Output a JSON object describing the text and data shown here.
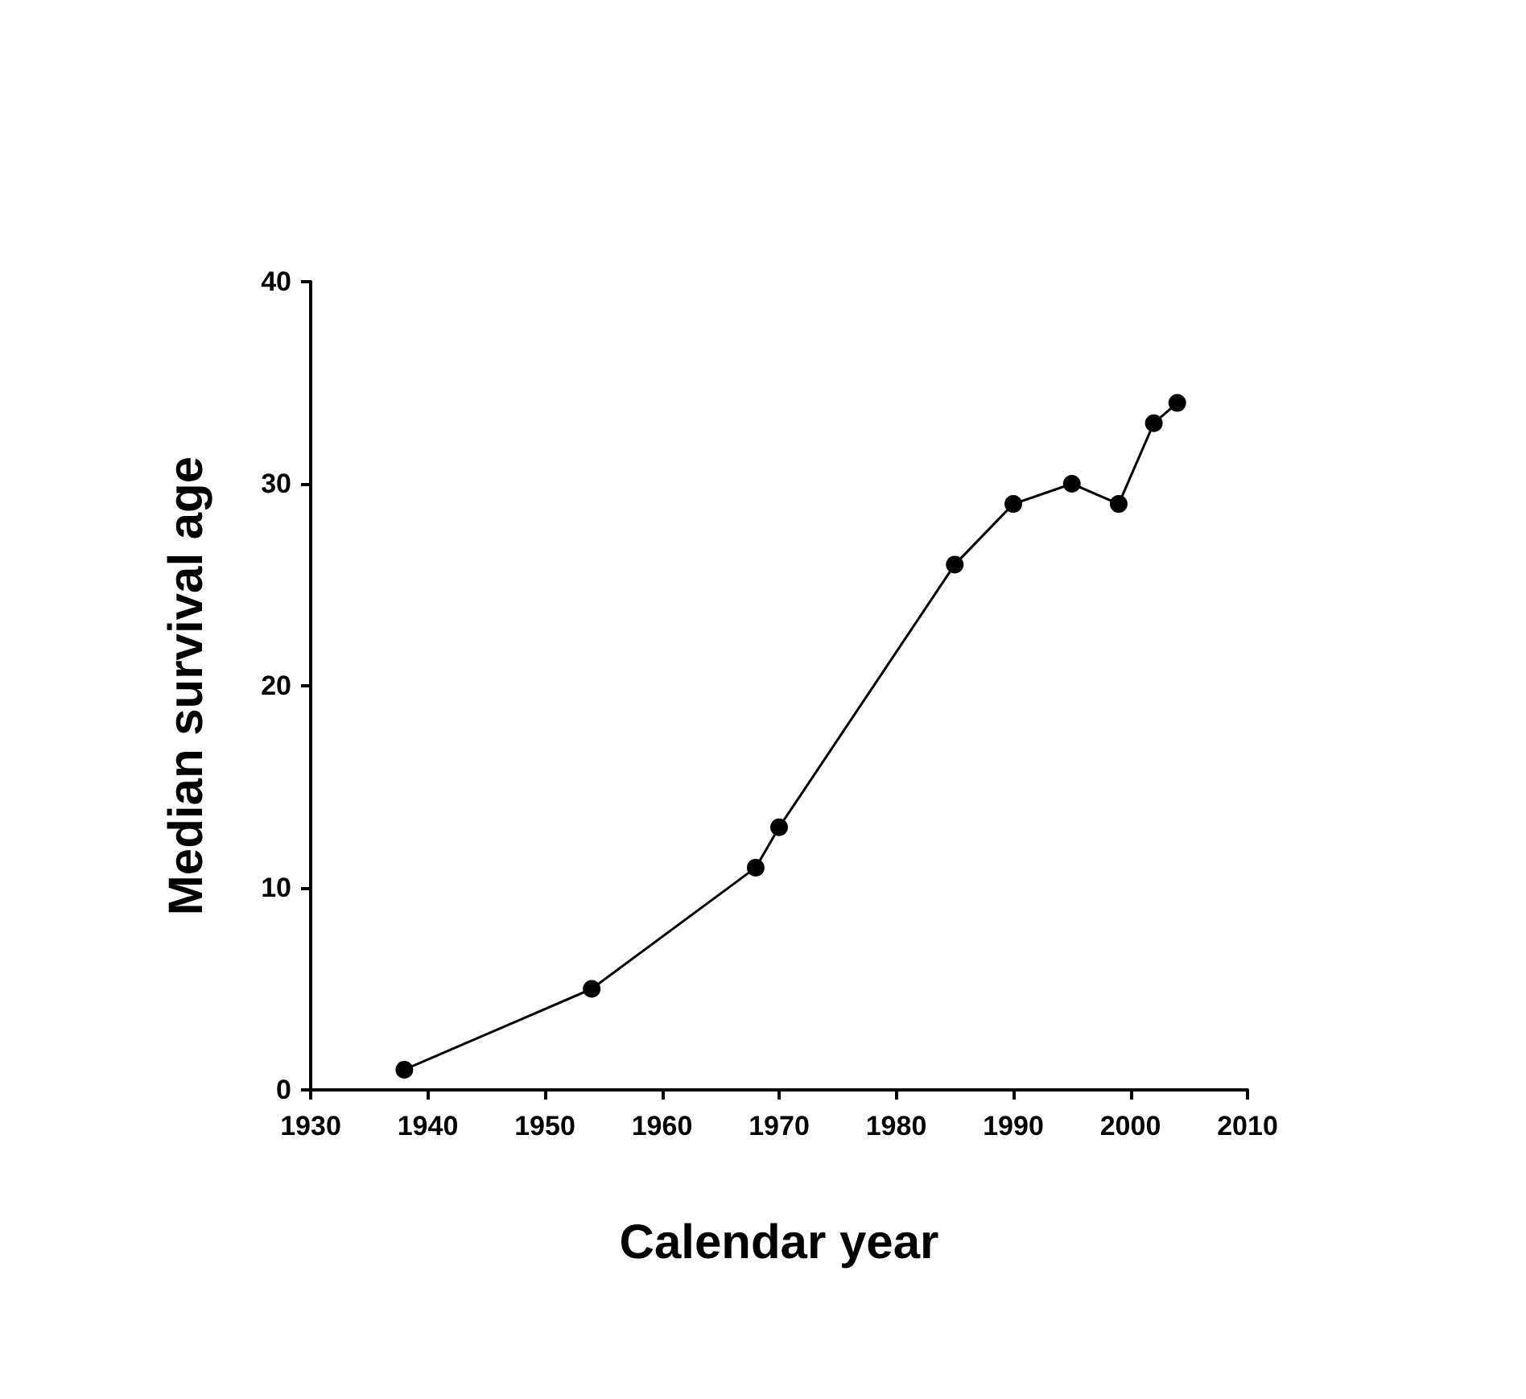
{
  "chart_data": {
    "type": "line",
    "xlabel": "Calendar year",
    "ylabel": "Median survival age",
    "x": [
      1938,
      1954,
      1968,
      1970,
      1985,
      1990,
      1995,
      1999,
      2002,
      2004
    ],
    "series": [
      {
        "color": "#000000",
        "values": [
          1,
          5,
          11,
          13,
          26,
          29,
          30,
          29,
          33,
          34
        ]
      }
    ],
    "xlim": [
      1930,
      2010
    ],
    "xticks": [
      1930,
      1940,
      1950,
      1960,
      1970,
      1980,
      1990,
      2000,
      2010
    ],
    "ylim": [
      0,
      40
    ],
    "yticks": [
      0,
      10,
      20,
      30,
      40
    ],
    "grid": false,
    "marker": "circle",
    "line_style": "solid"
  }
}
